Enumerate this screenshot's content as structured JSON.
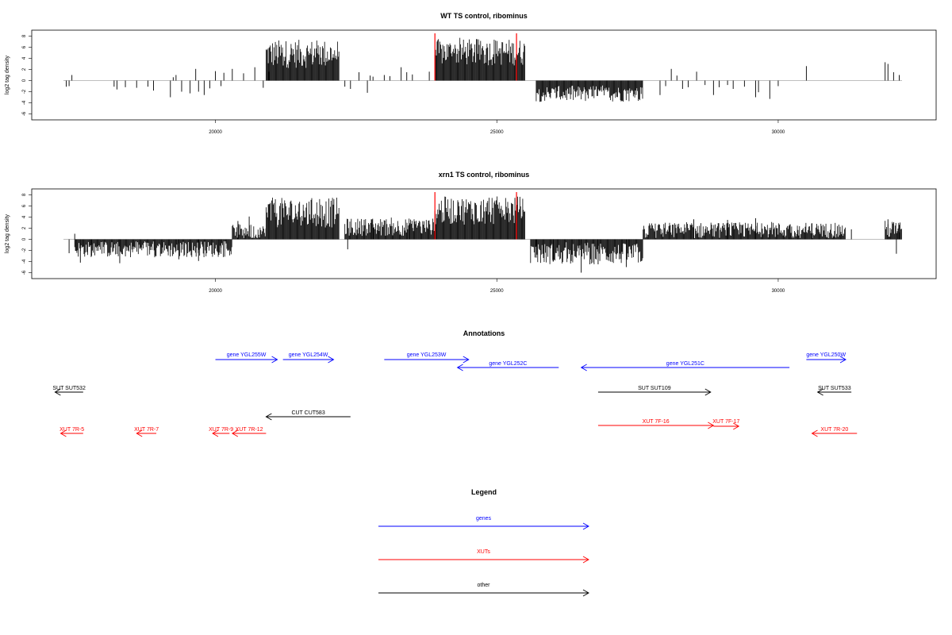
{
  "colors": {
    "genes": "#0000ff",
    "XUTs": "#ff0000",
    "other": "#000000",
    "baseline": "#bebebe",
    "marker": "#ff0000"
  },
  "chart_data": [
    {
      "type": "bar",
      "title": "WT TS control, ribominus",
      "ylabel": "log2 tag density",
      "xlim": [
        17000,
        32200
      ],
      "ylim": [
        -6.5,
        8.5
      ],
      "xticks": [
        20000,
        25000,
        30000
      ],
      "yticks": [
        8,
        6,
        4,
        2,
        0,
        -2,
        -4,
        -6
      ],
      "xticklabels": [
        "20000",
        "25000",
        "30000"
      ],
      "yticklabels": [
        "8",
        "6",
        "4",
        "2",
        "0",
        "-2",
        "-4",
        "-6"
      ],
      "baseline": [
        17300,
        32200
      ],
      "markers": [
        23900,
        25350
      ],
      "series": [
        {
          "dense": true,
          "segments": [
            [
              20900,
              22200,
              4.8,
              1.6
            ],
            [
              23900,
              25500,
              5.1,
              1.5
            ],
            [
              25700,
              27600,
              -2.4,
              0.9
            ]
          ]
        },
        {
          "values": [
            [
              17350,
              -1.1
            ],
            [
              17400,
              -1.0
            ],
            [
              17450,
              1.0
            ],
            [
              18200,
              -1.1
            ],
            [
              18250,
              -1.6
            ],
            [
              18400,
              -1.2
            ],
            [
              18600,
              -1.3
            ],
            [
              18800,
              -1.1
            ],
            [
              18900,
              -1.8
            ],
            [
              19200,
              -3.0
            ],
            [
              19250,
              0.6
            ],
            [
              19300,
              1.0
            ],
            [
              19400,
              -2.0
            ],
            [
              19550,
              -2.3
            ],
            [
              19650,
              2.1
            ],
            [
              19700,
              -2.0
            ],
            [
              19800,
              -2.6
            ],
            [
              19900,
              -1.4
            ],
            [
              20000,
              1.7
            ],
            [
              20100,
              -1.0
            ],
            [
              20150,
              1.4
            ],
            [
              20300,
              2.1
            ],
            [
              20500,
              1.3
            ],
            [
              20700,
              2.4
            ],
            [
              20850,
              -1.3
            ],
            [
              20950,
              1.6
            ],
            [
              22300,
              -1.1
            ],
            [
              22400,
              -1.5
            ],
            [
              22550,
              1.5
            ],
            [
              22700,
              -2.2
            ],
            [
              22750,
              0.9
            ],
            [
              22800,
              0.7
            ],
            [
              23000,
              1.0
            ],
            [
              23100,
              0.8
            ],
            [
              23300,
              2.4
            ],
            [
              23400,
              1.5
            ],
            [
              23500,
              1.1
            ],
            [
              23800,
              1.6
            ],
            [
              27900,
              -2.6
            ],
            [
              28000,
              -1.0
            ],
            [
              28100,
              2.1
            ],
            [
              28200,
              0.9
            ],
            [
              28300,
              -1.5
            ],
            [
              28400,
              -1.2
            ],
            [
              28550,
              1.6
            ],
            [
              28700,
              -0.8
            ],
            [
              28850,
              -2.6
            ],
            [
              28950,
              -1.2
            ],
            [
              29100,
              -0.8
            ],
            [
              29200,
              -1.5
            ],
            [
              29400,
              -1.1
            ],
            [
              29600,
              -3.0
            ],
            [
              29650,
              -2.1
            ],
            [
              29850,
              -3.3
            ],
            [
              30000,
              -1.0
            ],
            [
              30500,
              2.6
            ],
            [
              31900,
              3.3
            ],
            [
              31950,
              3.0
            ],
            [
              32050,
              1.5
            ],
            [
              32150,
              1.0
            ]
          ]
        }
      ]
    },
    {
      "type": "bar",
      "title": "xrn1 TS control, ribominus",
      "ylabel": "log2 tag density",
      "xlim": [
        17000,
        32200
      ],
      "ylim": [
        -6.5,
        8.5
      ],
      "xticks": [
        20000,
        25000,
        30000
      ],
      "yticks": [
        8,
        6,
        4,
        2,
        0,
        -2,
        -4,
        -6
      ],
      "xticklabels": [
        "20000",
        "25000",
        "30000"
      ],
      "yticklabels": [
        "8",
        "6",
        "4",
        "2",
        "0",
        "-2",
        "-4",
        "-6"
      ],
      "baseline": [
        17300,
        32200
      ],
      "markers": [
        23900,
        25350
      ],
      "series": [
        {
          "dense": true,
          "segments": [
            [
              17500,
              20300,
              -1.8,
              0.9
            ],
            [
              20300,
              20900,
              1.2,
              0.9
            ],
            [
              20900,
              22200,
              4.8,
              1.7
            ],
            [
              22300,
              23900,
              2.2,
              1.0
            ],
            [
              23900,
              25500,
              5.2,
              1.6
            ],
            [
              25600,
              27600,
              -2.6,
              1.2
            ],
            [
              27600,
              31200,
              1.6,
              0.9
            ],
            [
              31900,
              32200,
              1.8,
              1.0
            ]
          ]
        },
        {
          "values": [
            [
              17400,
              -2.5
            ],
            [
              17500,
              1.0
            ],
            [
              17600,
              -4.2
            ],
            [
              17800,
              -3.0
            ],
            [
              18300,
              -4.3
            ],
            [
              19350,
              -3.6
            ],
            [
              19700,
              -3.9
            ],
            [
              20100,
              -1.5
            ],
            [
              20400,
              3.3
            ],
            [
              20600,
              4.1
            ],
            [
              22350,
              -1.8
            ],
            [
              22800,
              2.7
            ],
            [
              23450,
              2.9
            ],
            [
              25700,
              -3.3
            ],
            [
              26000,
              -4.0
            ],
            [
              26500,
              -6.0
            ],
            [
              26800,
              -4.5
            ],
            [
              27300,
              -5.0
            ],
            [
              28500,
              3.6
            ],
            [
              29100,
              3.5
            ],
            [
              29600,
              3.8
            ],
            [
              30200,
              2.6
            ],
            [
              30600,
              2.9
            ],
            [
              31300,
              1.8
            ],
            [
              31950,
              3.6
            ],
            [
              32100,
              -2.6
            ],
            [
              32150,
              2.6
            ]
          ]
        }
      ]
    },
    {
      "type": "annotation",
      "title": "Annotations",
      "xlim": [
        17000,
        32200
      ],
      "features": [
        {
          "label": "gene YGL255W",
          "type": "genes",
          "start": 20000,
          "end": 21100,
          "dir": ">",
          "row": 0
        },
        {
          "label": "gene YGL254W",
          "type": "genes",
          "start": 21200,
          "end": 22100,
          "dir": ">",
          "row": 0
        },
        {
          "label": "gene YGL253W",
          "type": "genes",
          "start": 23000,
          "end": 24500,
          "dir": ">",
          "row": 0
        },
        {
          "label": "gene YGL252C",
          "type": "genes",
          "start": 24300,
          "end": 26100,
          "dir": "<",
          "row": 1
        },
        {
          "label": "gene YGL251C",
          "type": "genes",
          "start": 26500,
          "end": 30200,
          "dir": "<",
          "row": 1
        },
        {
          "label": "gene YGL250W",
          "type": "genes",
          "start": 30500,
          "end": 31200,
          "dir": ">",
          "row": 0
        },
        {
          "label": "SUT SUT532",
          "type": "other",
          "start": 17150,
          "end": 17650,
          "dir": "<",
          "row": 2
        },
        {
          "label": "SUT SUT109",
          "type": "other",
          "start": 26800,
          "end": 28800,
          "dir": ">",
          "row": 2
        },
        {
          "label": "SUT SUT533",
          "type": "other",
          "start": 30700,
          "end": 31300,
          "dir": "<",
          "row": 2
        },
        {
          "label": "CUT CUT583",
          "type": "other",
          "start": 20900,
          "end": 22400,
          "dir": "<",
          "row": 3
        },
        {
          "label": "XUT 7R-5",
          "type": "XUTs",
          "start": 17250,
          "end": 17650,
          "dir": "<",
          "row": 4
        },
        {
          "label": "XUT 7R-7",
          "type": "XUTs",
          "start": 18600,
          "end": 18950,
          "dir": "<",
          "row": 4
        },
        {
          "label": "XUT 7R-9",
          "type": "XUTs",
          "start": 19950,
          "end": 20250,
          "dir": "<",
          "row": 4
        },
        {
          "label": "XUT 7R-12",
          "type": "XUTs",
          "start": 20300,
          "end": 20900,
          "dir": "<",
          "row": 4
        },
        {
          "label": "XUT 7F-16",
          "type": "XUTs",
          "start": 26800,
          "end": 28850,
          "dir": ">",
          "row": 5
        },
        {
          "label": "XUT 7F-17",
          "type": "XUTs",
          "start": 28850,
          "end": 29300,
          "dir": ">",
          "row": 6
        },
        {
          "label": "XUT 7R-20",
          "type": "XUTs",
          "start": 30600,
          "end": 31400,
          "dir": "<",
          "row": 4
        }
      ]
    },
    {
      "type": "legend",
      "title": "Legend",
      "entries": [
        {
          "label": "genes",
          "type": "genes"
        },
        {
          "label": "XUTs",
          "type": "XUTs"
        },
        {
          "label": "other",
          "type": "other"
        }
      ]
    }
  ]
}
